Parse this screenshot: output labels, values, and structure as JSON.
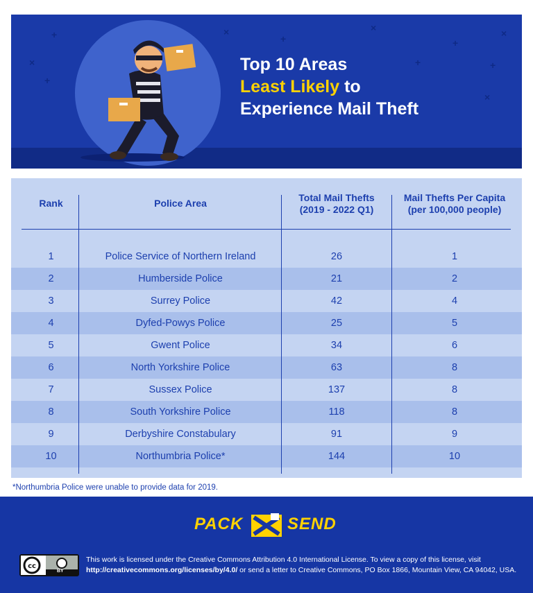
{
  "header": {
    "title_line1": "Top 10 Areas",
    "title_accent": "Least Likely",
    "title_line2_rest": " to",
    "title_line3": "Experience Mail Theft"
  },
  "chart_data": {
    "type": "table",
    "columns": [
      "Rank",
      "Police Area",
      "Total Mail Thefts (2019 - 2022 Q1)",
      "Mail Thefts Per Capita (per 100,000 people)"
    ],
    "headers": {
      "rank": "Rank",
      "area": "Police Area",
      "total_line1": "Total Mail Thefts",
      "total_line2": "(2019 - 2022 Q1)",
      "per_capita_line1": "Mail Thefts Per Capita",
      "per_capita_line2": "(per 100,000 people)"
    },
    "rows": [
      {
        "rank": "1",
        "area": "Police Service of Northern Ireland",
        "total": "26",
        "per_capita": "1"
      },
      {
        "rank": "2",
        "area": "Humberside Police",
        "total": "21",
        "per_capita": "2"
      },
      {
        "rank": "3",
        "area": "Surrey Police",
        "total": "42",
        "per_capita": "4"
      },
      {
        "rank": "4",
        "area": "Dyfed-Powys Police",
        "total": "25",
        "per_capita": "5"
      },
      {
        "rank": "5",
        "area": "Gwent Police",
        "total": "34",
        "per_capita": "6"
      },
      {
        "rank": "6",
        "area": "North Yorkshire Police",
        "total": "63",
        "per_capita": "8"
      },
      {
        "rank": "7",
        "area": "Sussex Police",
        "total": "137",
        "per_capita": "8"
      },
      {
        "rank": "8",
        "area": "South Yorkshire Police",
        "total": "118",
        "per_capita": "8"
      },
      {
        "rank": "9",
        "area": "Derbyshire Constabulary",
        "total": "91",
        "per_capita": "9"
      },
      {
        "rank": "10",
        "area": "Northumbria Police*",
        "total": "144",
        "per_capita": "10"
      }
    ],
    "footnote": "*Northumbria Police were unable to provide data for 2019."
  },
  "footer": {
    "logo_left": "PACK",
    "logo_right": "SEND",
    "cc_label": "BY",
    "license_line1": "This work is licensed under the Creative Commons Attribution 4.0 International License. To view a copy of this license, visit",
    "license_url": "http://creativecommons.org/licenses/by/4.0/",
    "license_line2_rest": " or send a letter to Creative Commons, PO Box 1866, Mountain View, CA 94042, USA."
  },
  "colors": {
    "banner": "#1a3aa8",
    "accent": "#ffd200",
    "table_bg": "#c4d4f2",
    "table_alt": "#a9bfeb",
    "text_blue": "#1c3fae",
    "footer": "#1636a4"
  }
}
